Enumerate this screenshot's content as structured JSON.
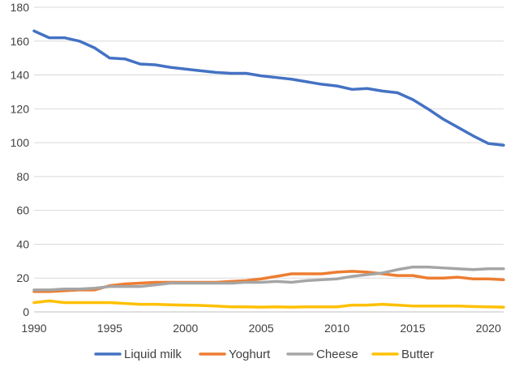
{
  "chart_data": {
    "type": "line",
    "title": "",
    "xlabel": "",
    "ylabel": "",
    "xlim": [
      1990,
      2021
    ],
    "ylim": [
      0,
      180
    ],
    "x_ticks": [
      "1990",
      "1995",
      "2000",
      "2005",
      "2010",
      "2015",
      "2020"
    ],
    "y_ticks": [
      "0",
      "20",
      "40",
      "60",
      "80",
      "100",
      "120",
      "140",
      "160",
      "180"
    ],
    "grid": "horizontal",
    "legend_position": "bottom",
    "x": [
      1990,
      1991,
      1992,
      1993,
      1994,
      1995,
      1996,
      1997,
      1998,
      1999,
      2000,
      2001,
      2002,
      2003,
      2004,
      2005,
      2006,
      2007,
      2008,
      2009,
      2010,
      2011,
      2012,
      2013,
      2014,
      2015,
      2016,
      2017,
      2018,
      2019,
      2020,
      2021
    ],
    "series": [
      {
        "name": "Liquid milk",
        "color": "#4472C4",
        "values": [
          166,
          162,
          162,
          160,
          156,
          150,
          149.5,
          146.5,
          146,
          144.5,
          143.5,
          142.5,
          141.5,
          141,
          141,
          139.5,
          138.5,
          137.5,
          136,
          134.5,
          133.5,
          131.5,
          132,
          130.5,
          129.5,
          125.5,
          120,
          114,
          109,
          104,
          99.5,
          98.5
        ]
      },
      {
        "name": "Yoghurt",
        "color": "#ED7D31",
        "values": [
          12,
          12,
          12.5,
          13,
          13,
          15.5,
          16.5,
          17,
          17.5,
          17.5,
          17.5,
          17.5,
          17.5,
          18,
          18.5,
          19.5,
          21,
          22.5,
          22.5,
          22.5,
          23.5,
          24,
          23.5,
          22.5,
          21.5,
          21.5,
          20,
          20,
          20.5,
          19.5,
          19.5,
          19
        ]
      },
      {
        "name": "Cheese",
        "color": "#A5A5A5",
        "values": [
          13,
          13,
          13.5,
          13.5,
          14,
          15,
          15,
          15,
          16,
          17,
          17,
          17,
          17,
          17,
          17.5,
          17.5,
          18,
          17.5,
          18.5,
          19,
          19.5,
          21,
          22,
          23,
          25,
          26.5,
          26.5,
          26,
          25.5,
          25,
          25.5,
          25.5
        ]
      },
      {
        "name": "Butter",
        "color": "#FFC000",
        "values": [
          5.5,
          6.5,
          5.5,
          5.5,
          5.5,
          5.5,
          5,
          4.5,
          4.5,
          4.2,
          4,
          3.8,
          3.5,
          3,
          3,
          2.8,
          3,
          2.8,
          3,
          3,
          3,
          4,
          4,
          4.5,
          4,
          3.5,
          3.5,
          3.5,
          3.5,
          3.2,
          3,
          2.8
        ]
      }
    ]
  }
}
